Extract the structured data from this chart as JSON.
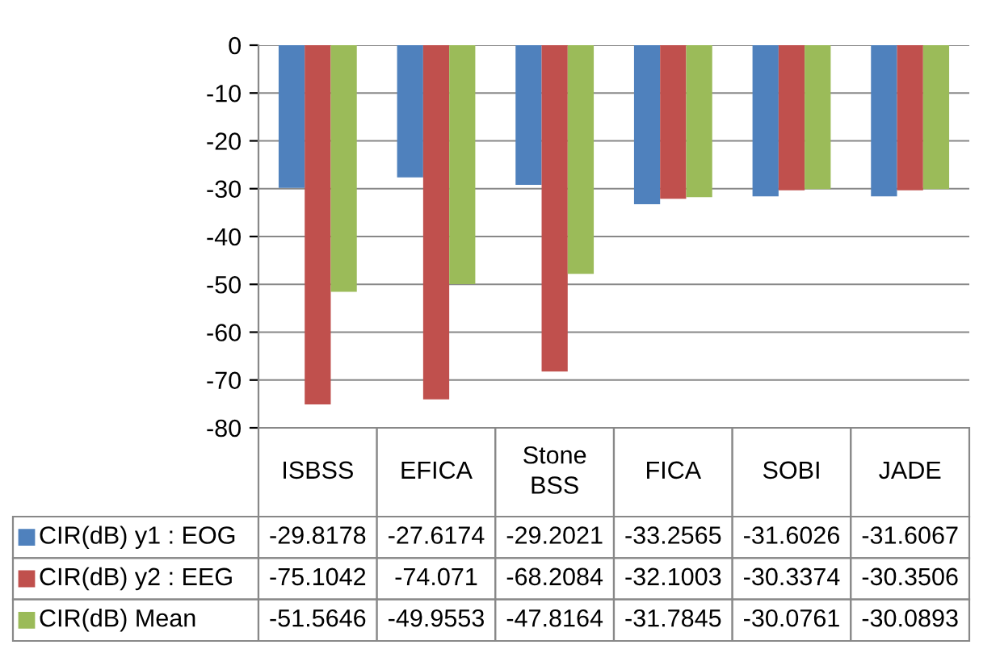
{
  "chart_data": {
    "type": "bar",
    "categories": [
      "ISBSS",
      "EFICA",
      "Stone\nBSS",
      "FICA",
      "SOBI",
      "JADE"
    ],
    "series": [
      {
        "name": "CIR(dB) y1 : EOG",
        "color": "#4f81bd",
        "values": [
          -29.8178,
          -27.6174,
          -29.2021,
          -33.2565,
          -31.6026,
          -31.6067
        ]
      },
      {
        "name": "CIR(dB) y2 : EEG",
        "color": "#c0504d",
        "values": [
          -75.1042,
          -74.071,
          -68.2084,
          -32.1003,
          -30.3374,
          -30.3506
        ]
      },
      {
        "name": "CIR(dB) Mean",
        "color": "#9bbb59",
        "values": [
          -51.5646,
          -49.9553,
          -47.8164,
          -31.7845,
          -30.0761,
          -30.0893
        ]
      }
    ],
    "ylim": [
      -80,
      0
    ],
    "yticks": [
      0,
      -10,
      -20,
      -30,
      -40,
      -50,
      -60,
      -70,
      -80
    ],
    "grid": "y",
    "data_labels": true,
    "legend": "bottom left"
  }
}
